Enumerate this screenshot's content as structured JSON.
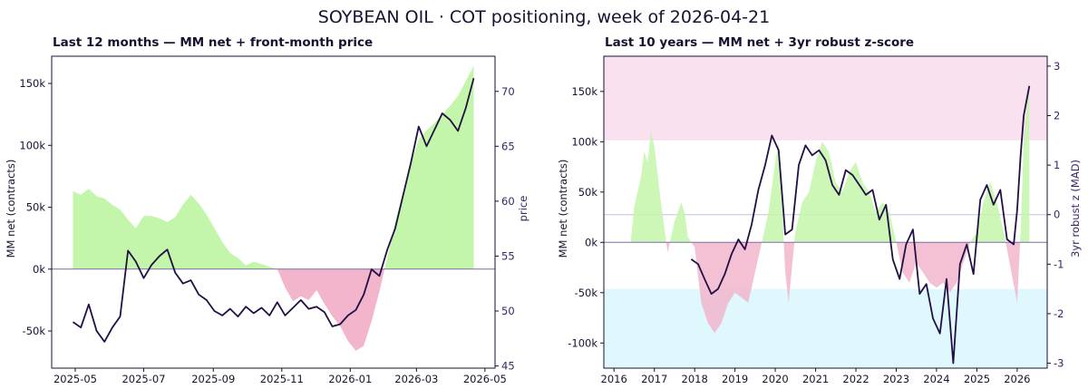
{
  "title": "SOYBEAN OIL  ·  COT positioning, week of 2026-04-21",
  "chart_data": [
    {
      "type": "line",
      "title": "Last 12 months — MM net + front-month price",
      "ylabel": "MM net (contracts)",
      "y2label": "price",
      "xlim": [
        "2025-04-10",
        "2026-05-10"
      ],
      "ylim": [
        -80000,
        172000
      ],
      "y2lim": [
        44.8,
        73.2
      ],
      "xticks": [
        "2025-05",
        "2025-07",
        "2025-09",
        "2025-11",
        "2026-01",
        "2026-03",
        "2026-05"
      ],
      "yticks": [
        -50000,
        0,
        50000,
        100000,
        150000
      ],
      "yticklabels": [
        "-50k",
        "0k",
        "50k",
        "100k",
        "150k"
      ],
      "y2ticks": [
        45,
        50,
        55,
        60,
        65,
        70
      ],
      "grid": false,
      "series": [
        {
          "kind": "area",
          "values": [
            [
              "2025-04-29",
              63000
            ],
            [
              "2025-05-06",
              60000
            ],
            [
              "2025-05-13",
              65000
            ],
            [
              "2025-05-20",
              59000
            ],
            [
              "2025-05-27",
              57000
            ],
            [
              "2025-06-03",
              52000
            ],
            [
              "2025-06-10",
              48000
            ],
            [
              "2025-06-17",
              40000
            ],
            [
              "2025-06-24",
              33000
            ],
            [
              "2025-07-01",
              43000
            ],
            [
              "2025-07-08",
              43000
            ],
            [
              "2025-07-15",
              41000
            ],
            [
              "2025-07-22",
              38000
            ],
            [
              "2025-07-29",
              42000
            ],
            [
              "2025-08-05",
              52000
            ],
            [
              "2025-08-12",
              60000
            ],
            [
              "2025-08-19",
              53000
            ],
            [
              "2025-08-26",
              44000
            ],
            [
              "2025-09-02",
              33000
            ],
            [
              "2025-09-09",
              22000
            ],
            [
              "2025-09-16",
              13000
            ],
            [
              "2025-09-23",
              9000
            ],
            [
              "2025-09-30",
              3000
            ],
            [
              "2025-10-07",
              6000
            ],
            [
              "2025-10-14",
              4000
            ],
            [
              "2025-10-21",
              2000
            ],
            [
              "2025-10-28",
              0
            ],
            [
              "2025-11-04",
              -15000
            ],
            [
              "2025-11-11",
              -26000
            ],
            [
              "2025-11-18",
              -22000
            ],
            [
              "2025-11-25",
              -25000
            ],
            [
              "2025-12-02",
              -17000
            ],
            [
              "2025-12-09",
              -28000
            ],
            [
              "2025-12-16",
              -38000
            ],
            [
              "2025-12-23",
              -46000
            ],
            [
              "2025-12-30",
              -58000
            ],
            [
              "2026-01-06",
              -66000
            ],
            [
              "2026-01-13",
              -62000
            ],
            [
              "2026-01-20",
              -42000
            ],
            [
              "2026-01-27",
              -18000
            ],
            [
              "2026-02-03",
              10000
            ],
            [
              "2026-02-10",
              38000
            ],
            [
              "2026-02-17",
              62000
            ],
            [
              "2026-02-24",
              85000
            ],
            [
              "2026-03-03",
              105000
            ],
            [
              "2026-03-10",
              112000
            ],
            [
              "2026-03-17",
              118000
            ],
            [
              "2026-03-24",
              125000
            ],
            [
              "2026-03-31",
              132000
            ],
            [
              "2026-04-07",
              140000
            ],
            [
              "2026-04-14",
              152000
            ],
            [
              "2026-04-21",
              164000
            ]
          ]
        },
        {
          "kind": "line",
          "name": "price",
          "values": [
            [
              "2025-04-29",
              49.0
            ],
            [
              "2025-05-06",
              48.5
            ],
            [
              "2025-05-13",
              50.6
            ],
            [
              "2025-05-20",
              48.2
            ],
            [
              "2025-05-27",
              47.2
            ],
            [
              "2025-06-03",
              48.5
            ],
            [
              "2025-06-10",
              49.5
            ],
            [
              "2025-06-17",
              55.5
            ],
            [
              "2025-06-24",
              54.5
            ],
            [
              "2025-07-01",
              53.0
            ],
            [
              "2025-07-08",
              54.2
            ],
            [
              "2025-07-15",
              55.0
            ],
            [
              "2025-07-22",
              55.6
            ],
            [
              "2025-07-29",
              53.5
            ],
            [
              "2025-08-05",
              52.5
            ],
            [
              "2025-08-12",
              52.8
            ],
            [
              "2025-08-19",
              51.5
            ],
            [
              "2025-08-26",
              51.0
            ],
            [
              "2025-09-02",
              50.0
            ],
            [
              "2025-09-09",
              49.6
            ],
            [
              "2025-09-16",
              50.2
            ],
            [
              "2025-09-23",
              49.5
            ],
            [
              "2025-09-30",
              50.4
            ],
            [
              "2025-10-07",
              49.8
            ],
            [
              "2025-10-14",
              50.3
            ],
            [
              "2025-10-21",
              49.6
            ],
            [
              "2025-10-28",
              50.8
            ],
            [
              "2025-11-04",
              49.6
            ],
            [
              "2025-11-11",
              50.3
            ],
            [
              "2025-11-18",
              51.0
            ],
            [
              "2025-11-25",
              50.2
            ],
            [
              "2025-12-02",
              50.4
            ],
            [
              "2025-12-09",
              49.9
            ],
            [
              "2025-12-16",
              48.6
            ],
            [
              "2025-12-23",
              48.8
            ],
            [
              "2025-12-30",
              49.6
            ],
            [
              "2026-01-06",
              50.1
            ],
            [
              "2026-01-13",
              51.5
            ],
            [
              "2026-01-20",
              53.8
            ],
            [
              "2026-01-27",
              53.2
            ],
            [
              "2026-02-03",
              55.6
            ],
            [
              "2026-02-10",
              57.5
            ],
            [
              "2026-02-17",
              60.5
            ],
            [
              "2026-02-24",
              63.5
            ],
            [
              "2026-03-03",
              66.8
            ],
            [
              "2026-03-10",
              65.0
            ],
            [
              "2026-03-17",
              66.5
            ],
            [
              "2026-03-24",
              68.0
            ],
            [
              "2026-03-31",
              67.4
            ],
            [
              "2026-04-07",
              66.4
            ],
            [
              "2026-04-14",
              68.5
            ],
            [
              "2026-04-21",
              71.2
            ]
          ]
        }
      ]
    },
    {
      "type": "line",
      "title": "Last 10 years — MM net + 3yr robust z-score",
      "ylabel": "MM net (contracts)",
      "y2label": "3yr robust z (MAD)",
      "xlim": [
        "2015-10-01",
        "2026-09-30"
      ],
      "ylim": [
        -125000,
        185000
      ],
      "y2lim": [
        -3.1,
        3.2
      ],
      "xticks": [
        "2016",
        "2017",
        "2018",
        "2019",
        "2020",
        "2021",
        "2022",
        "2023",
        "2024",
        "2025",
        "2026"
      ],
      "yticks": [
        -100000,
        -50000,
        0,
        50000,
        100000,
        150000
      ],
      "yticklabels": [
        "-100k",
        "-50k",
        "0k",
        "50k",
        "100k",
        "150k"
      ],
      "y2ticks": [
        -3,
        -2,
        -1,
        0,
        1,
        2,
        3
      ],
      "bands": [
        {
          "from": 1.5,
          "to": 3.2,
          "color": "#f9e1ef"
        },
        {
          "from": -3.1,
          "to": -1.5,
          "color": "#dff8fd"
        }
      ],
      "grid": false,
      "series": [
        {
          "kind": "area",
          "values": [
            [
              "2016-06-01",
              0
            ],
            [
              "2016-07-01",
              35000
            ],
            [
              "2016-09-01",
              65000
            ],
            [
              "2016-10-01",
              90000
            ],
            [
              "2016-11-01",
              80000
            ],
            [
              "2016-12-01",
              110000
            ],
            [
              "2017-01-01",
              95000
            ],
            [
              "2017-03-01",
              40000
            ],
            [
              "2017-05-01",
              -10000
            ],
            [
              "2017-07-01",
              20000
            ],
            [
              "2017-09-01",
              40000
            ],
            [
              "2017-10-01",
              30000
            ],
            [
              "2017-11-01",
              5000
            ],
            [
              "2018-01-01",
              -5000
            ],
            [
              "2018-03-01",
              -60000
            ],
            [
              "2018-05-01",
              -80000
            ],
            [
              "2018-07-01",
              -90000
            ],
            [
              "2018-09-01",
              -80000
            ],
            [
              "2018-11-01",
              -60000
            ],
            [
              "2019-01-01",
              -50000
            ],
            [
              "2019-03-01",
              -55000
            ],
            [
              "2019-05-01",
              -60000
            ],
            [
              "2019-07-01",
              -30000
            ],
            [
              "2019-09-01",
              0
            ],
            [
              "2019-11-01",
              30000
            ],
            [
              "2020-01-01",
              80000
            ],
            [
              "2020-02-01",
              100000
            ],
            [
              "2020-03-01",
              40000
            ],
            [
              "2020-04-01",
              -30000
            ],
            [
              "2020-05-01",
              -60000
            ],
            [
              "2020-07-01",
              10000
            ],
            [
              "2020-09-01",
              40000
            ],
            [
              "2020-11-01",
              50000
            ],
            [
              "2021-01-01",
              80000
            ],
            [
              "2021-03-01",
              100000
            ],
            [
              "2021-05-01",
              90000
            ],
            [
              "2021-07-01",
              60000
            ],
            [
              "2021-09-01",
              50000
            ],
            [
              "2021-11-01",
              70000
            ],
            [
              "2022-01-01",
              80000
            ],
            [
              "2022-03-01",
              60000
            ],
            [
              "2022-05-01",
              50000
            ],
            [
              "2022-07-01",
              30000
            ],
            [
              "2022-09-01",
              40000
            ],
            [
              "2022-11-01",
              30000
            ],
            [
              "2023-01-01",
              0
            ],
            [
              "2023-03-01",
              -30000
            ],
            [
              "2023-05-01",
              -40000
            ],
            [
              "2023-07-01",
              -20000
            ],
            [
              "2023-09-01",
              -30000
            ],
            [
              "2023-11-01",
              -40000
            ],
            [
              "2024-01-01",
              -45000
            ],
            [
              "2024-03-01",
              -40000
            ],
            [
              "2024-05-01",
              -50000
            ],
            [
              "2024-07-01",
              -40000
            ],
            [
              "2024-09-01",
              -20000
            ],
            [
              "2024-11-01",
              0
            ],
            [
              "2025-01-01",
              10000
            ],
            [
              "2025-03-01",
              40000
            ],
            [
              "2025-05-01",
              60000
            ],
            [
              "2025-07-01",
              40000
            ],
            [
              "2025-09-01",
              10000
            ],
            [
              "2025-11-01",
              -25000
            ],
            [
              "2026-01-01",
              -60000
            ],
            [
              "2026-02-01",
              10000
            ],
            [
              "2026-03-01",
              100000
            ],
            [
              "2026-04-21",
              164000
            ]
          ]
        },
        {
          "kind": "line",
          "name": "3yr robust z (MAD)",
          "values": [
            [
              "2017-12-01",
              -0.9
            ],
            [
              "2018-02-01",
              -1.0
            ],
            [
              "2018-04-01",
              -1.3
            ],
            [
              "2018-06-01",
              -1.6
            ],
            [
              "2018-08-01",
              -1.5
            ],
            [
              "2018-10-01",
              -1.2
            ],
            [
              "2018-12-01",
              -0.8
            ],
            [
              "2019-02-01",
              -0.5
            ],
            [
              "2019-04-01",
              -0.7
            ],
            [
              "2019-06-01",
              -0.2
            ],
            [
              "2019-08-01",
              0.5
            ],
            [
              "2019-10-01",
              1.0
            ],
            [
              "2019-12-01",
              1.6
            ],
            [
              "2020-02-01",
              1.3
            ],
            [
              "2020-04-01",
              -0.4
            ],
            [
              "2020-06-01",
              -0.3
            ],
            [
              "2020-08-01",
              1.0
            ],
            [
              "2020-10-01",
              1.4
            ],
            [
              "2020-12-01",
              1.2
            ],
            [
              "2021-02-01",
              1.3
            ],
            [
              "2021-04-01",
              1.1
            ],
            [
              "2021-06-01",
              0.6
            ],
            [
              "2021-08-01",
              0.4
            ],
            [
              "2021-10-01",
              0.9
            ],
            [
              "2021-12-01",
              0.8
            ],
            [
              "2022-02-01",
              0.6
            ],
            [
              "2022-04-01",
              0.4
            ],
            [
              "2022-06-01",
              0.5
            ],
            [
              "2022-08-01",
              -0.1
            ],
            [
              "2022-10-01",
              0.2
            ],
            [
              "2022-12-01",
              -0.9
            ],
            [
              "2023-02-01",
              -1.3
            ],
            [
              "2023-04-01",
              -0.6
            ],
            [
              "2023-06-01",
              -0.3
            ],
            [
              "2023-08-01",
              -1.6
            ],
            [
              "2023-10-01",
              -1.4
            ],
            [
              "2023-12-01",
              -2.1
            ],
            [
              "2024-02-01",
              -2.4
            ],
            [
              "2024-04-01",
              -1.3
            ],
            [
              "2024-06-01",
              -3.0
            ],
            [
              "2024-08-01",
              -1.0
            ],
            [
              "2024-10-01",
              -0.6
            ],
            [
              "2024-12-01",
              -1.2
            ],
            [
              "2025-02-01",
              0.3
            ],
            [
              "2025-04-01",
              0.6
            ],
            [
              "2025-06-01",
              0.2
            ],
            [
              "2025-08-01",
              0.5
            ],
            [
              "2025-10-01",
              -0.5
            ],
            [
              "2025-12-01",
              -0.6
            ],
            [
              "2026-01-01",
              0.1
            ],
            [
              "2026-02-01",
              1.2
            ],
            [
              "2026-03-01",
              2.0
            ],
            [
              "2026-04-21",
              2.6
            ]
          ]
        }
      ]
    }
  ],
  "colors": {
    "area_pos": "#c3f6aa",
    "area_neg": "#f2b5cb",
    "line": "#220f45",
    "zero_line": "#7b6ea2",
    "band_high": "#f9e1ef",
    "band_low": "#dff8fd",
    "band_mid_line": "#c8c2e0"
  }
}
